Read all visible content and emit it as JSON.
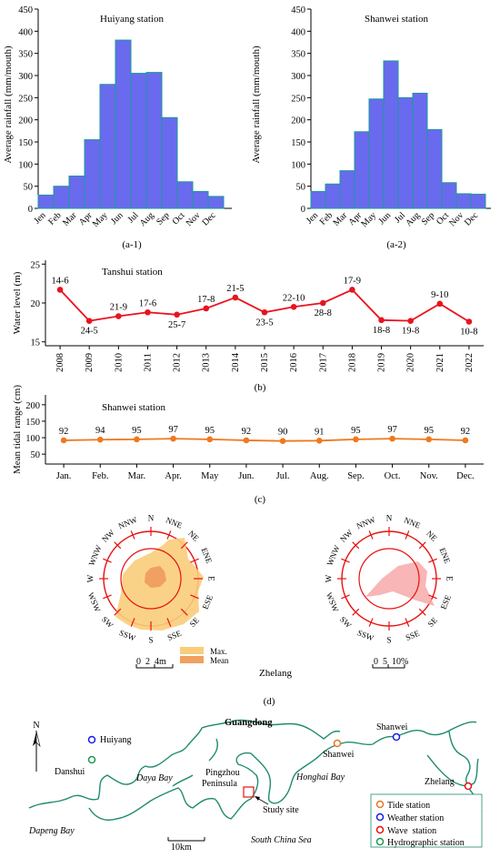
{
  "chart_data": [
    {
      "id": "a1",
      "type": "bar",
      "title": "Huiyang station",
      "ylabel": "Average rainfall (mm/mouth)",
      "caption": "(a-1)",
      "categories": [
        "Jen",
        "Feb",
        "Mar",
        "Apr",
        "May",
        "Jun",
        "Jul",
        "Aug",
        "Sep",
        "Oct",
        "Nov",
        "Dec"
      ],
      "values": [
        30,
        50,
        73,
        155,
        280,
        380,
        305,
        307,
        205,
        60,
        38,
        27
      ],
      "ylim": [
        0,
        450
      ],
      "yticks": [
        "0",
        "50",
        "100",
        "150",
        "200",
        "250",
        "300",
        "350",
        "400",
        "450"
      ],
      "color": "#6a6aee"
    },
    {
      "id": "a2",
      "type": "bar",
      "title": "Shanwei station",
      "ylabel": "Average rainfall (mm/mouth)",
      "caption": "(a-2)",
      "categories": [
        "Jen",
        "Feb",
        "Mar",
        "Apr",
        "May",
        "Jun",
        "Jul",
        "Aug",
        "Sep",
        "Oct",
        "Nov",
        "Dec"
      ],
      "values": [
        38,
        55,
        85,
        173,
        247,
        333,
        250,
        260,
        178,
        58,
        33,
        32
      ],
      "ylim": [
        0,
        450
      ],
      "yticks": [
        "0",
        "50",
        "100",
        "150",
        "200",
        "250",
        "300",
        "350",
        "400",
        "450"
      ],
      "color": "#6a6aee"
    },
    {
      "id": "b",
      "type": "line",
      "title": "Tanshui station",
      "ylabel": "Water level (m)",
      "caption": "(b)",
      "categories": [
        "2008",
        "2009",
        "2010",
        "2011",
        "2012",
        "2013",
        "2014",
        "2015",
        "2016",
        "2017",
        "2018",
        "2019",
        "2020",
        "2021",
        "2022"
      ],
      "values": [
        21.7,
        17.7,
        18.3,
        18.8,
        18.5,
        19.3,
        20.7,
        18.8,
        19.5,
        20.0,
        21.7,
        17.8,
        17.7,
        19.9,
        17.6
      ],
      "labels": [
        "14-6",
        "24-5",
        "21-9",
        "17-6",
        "25-7",
        "17-8",
        "21-5",
        "23-5",
        "22-10",
        "28-8",
        "17-9",
        "18-8",
        "19-8",
        "9-10",
        "10-8"
      ],
      "label_pos": [
        "above",
        "below",
        "above",
        "above",
        "below",
        "above",
        "above",
        "below",
        "above",
        "below",
        "above",
        "below",
        "below",
        "above",
        "below"
      ],
      "ylim": [
        14.5,
        25.5
      ],
      "yticks": [
        15,
        20,
        25
      ],
      "color": "#e8141e"
    },
    {
      "id": "c",
      "type": "line",
      "title": "Shanwei station",
      "ylabel": "Mean tidal range (cm)",
      "caption": "(c)",
      "categories": [
        "Jan.",
        "Feb.",
        "Mar.",
        "Apr.",
        "May",
        "Jun.",
        "Jul.",
        "Aug.",
        "Sep.",
        "Oct.",
        "Nov.",
        "Dec."
      ],
      "values": [
        92,
        94,
        95,
        97,
        95,
        92,
        90,
        91,
        95,
        97,
        95,
        92
      ],
      "labels": [
        "92",
        "94",
        "95",
        "97",
        "95",
        "92",
        "90",
        "91",
        "95",
        "97",
        "95",
        "92"
      ],
      "ylim": [
        20,
        230
      ],
      "yticks": [
        50,
        100,
        150,
        200
      ],
      "color": "#f0781e"
    }
  ],
  "wave_roses": {
    "caption": "(d)",
    "station": "Zhelang",
    "directions": [
      "N",
      "NNE",
      "NE",
      "ENE",
      "E",
      "ESE",
      "SE",
      "SSE",
      "S",
      "SSW",
      "SW",
      "WSW",
      "W",
      "WNW",
      "NW",
      "NNW"
    ],
    "left": {
      "scale_label": "0  2  4m",
      "max_color": "#f9cd7a",
      "mean_color": "#f0a060",
      "legend_max": "Max.",
      "legend_mean": "Mean"
    },
    "right": {
      "scale_label": "0  5  10%",
      "fill_color": "#f7a9a9"
    }
  },
  "map": {
    "province": "Guangdong",
    "north": "N",
    "places": {
      "huiyang": "Huiyang",
      "danshui": "Danshui",
      "daya_bay": "Daya Bay",
      "pingzhou": "Pingzhou",
      "peninsula": "Peninsula",
      "shanwei_tide": "Shanwei",
      "shanwei_weather": "Shanwei",
      "honghai_bay": "Honghai Bay",
      "zhelang": "Zhelang",
      "study_site": "Study site",
      "dapeng_bay": "Dapeng Bay",
      "south_china_sea": "South China Sea"
    },
    "scale": "10km",
    "legend": [
      {
        "label": "Tide station",
        "color": "#e07820"
      },
      {
        "label": "Weather station",
        "color": "#1a1aee"
      },
      {
        "label": "Wave  station",
        "color": "#e81010"
      },
      {
        "label": "Hydrographic station",
        "color": "#1a9a50"
      }
    ],
    "coast_color": "#1f8a70"
  }
}
